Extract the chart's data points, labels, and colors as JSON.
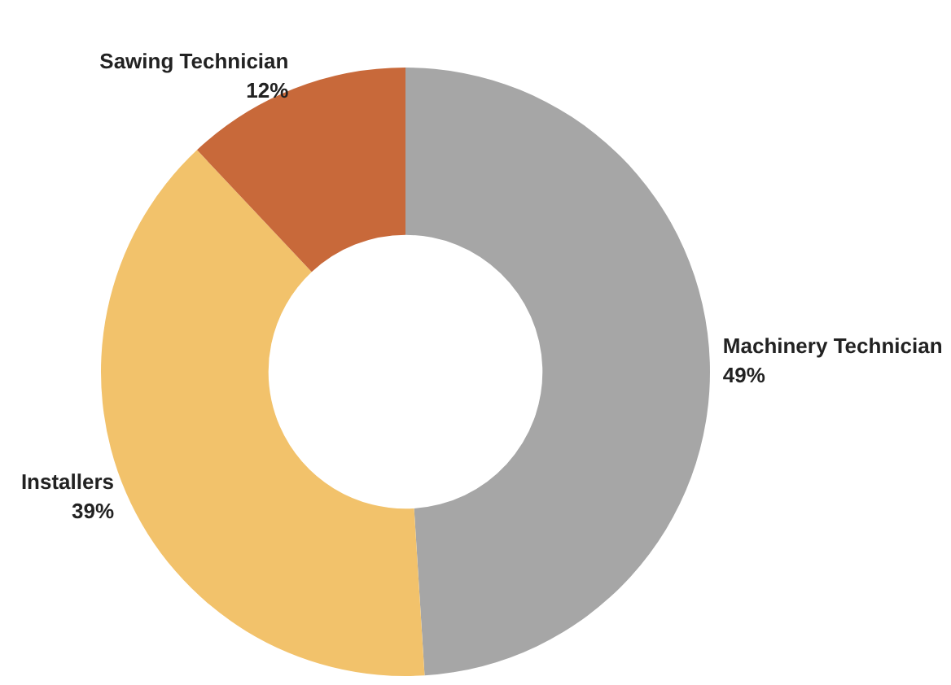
{
  "chart_data": {
    "type": "donut",
    "categories": [
      "Machinery Technician",
      "Installers",
      "Sawing Technician"
    ],
    "values": [
      49,
      39,
      12
    ],
    "colors": [
      "#a6a6a6",
      "#f2c26b",
      "#c8693a"
    ],
    "value_labels": [
      "49%",
      "39%",
      "12%"
    ],
    "legend": false
  }
}
